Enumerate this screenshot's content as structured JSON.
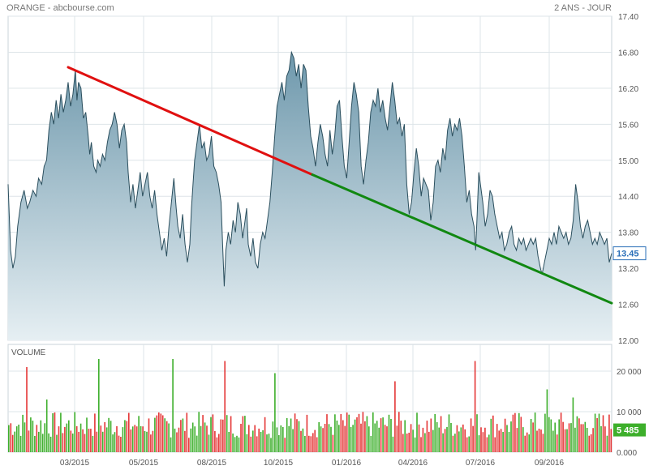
{
  "header": {
    "title": "ORANGE - abcbourse.com",
    "period": "2 ANS - JOUR"
  },
  "chart_data": [
    {
      "type": "area",
      "x_ticks": [
        "03/2015",
        "05/2015",
        "08/2015",
        "10/2015",
        "01/2016",
        "04/2016",
        "07/2016",
        "09/2016"
      ],
      "y_ticks": [
        "17.40",
        "16.80",
        "16.20",
        "15.60",
        "15.00",
        "14.40",
        "13.80",
        "13.20",
        "12.60",
        "12.00"
      ],
      "ylim": [
        12.0,
        17.4
      ],
      "grid": true,
      "last_price": "13.45",
      "series": [
        {
          "points": [
            [
              0,
              14.6
            ],
            [
              3,
              13.5
            ],
            [
              6,
              13.2
            ],
            [
              9,
              13.4
            ],
            [
              12,
              13.9
            ],
            [
              16,
              14.3
            ],
            [
              20,
              14.5
            ],
            [
              24,
              14.2
            ],
            [
              27,
              14.3
            ],
            [
              31,
              14.5
            ],
            [
              35,
              14.4
            ],
            [
              38,
              14.7
            ],
            [
              42,
              14.6
            ],
            [
              45,
              14.9
            ],
            [
              48,
              15.0
            ],
            [
              51,
              15.5
            ],
            [
              54,
              15.8
            ],
            [
              57,
              15.6
            ],
            [
              60,
              16.0
            ],
            [
              63,
              15.7
            ],
            [
              66,
              16.1
            ],
            [
              69,
              15.8
            ],
            [
              72,
              16.0
            ],
            [
              75,
              16.3
            ],
            [
              78,
              15.9
            ],
            [
              81,
              16.1
            ],
            [
              84,
              16.5
            ],
            [
              86,
              16.0
            ],
            [
              88,
              16.3
            ],
            [
              91,
              16.2
            ],
            [
              94,
              15.7
            ],
            [
              97,
              15.8
            ],
            [
              100,
              15.4
            ],
            [
              102,
              15.1
            ],
            [
              104,
              15.3
            ],
            [
              107,
              14.9
            ],
            [
              110,
              14.8
            ],
            [
              112,
              15.0
            ],
            [
              115,
              14.9
            ],
            [
              118,
              15.1
            ],
            [
              121,
              15.0
            ],
            [
              124,
              15.3
            ],
            [
              127,
              15.5
            ],
            [
              130,
              15.6
            ],
            [
              133,
              15.8
            ],
            [
              136,
              15.6
            ],
            [
              139,
              15.2
            ],
            [
              142,
              15.5
            ],
            [
              145,
              15.6
            ],
            [
              148,
              15.3
            ],
            [
              150,
              14.8
            ],
            [
              153,
              14.3
            ],
            [
              156,
              14.6
            ],
            [
              159,
              14.2
            ],
            [
              162,
              14.5
            ],
            [
              165,
              14.8
            ],
            [
              168,
              14.4
            ],
            [
              171,
              14.6
            ],
            [
              174,
              14.8
            ],
            [
              177,
              14.4
            ],
            [
              180,
              14.2
            ],
            [
              183,
              14.5
            ],
            [
              186,
              14.1
            ],
            [
              189,
              13.8
            ],
            [
              192,
              13.5
            ],
            [
              195,
              13.7
            ],
            [
              198,
              13.4
            ],
            [
              201,
              13.9
            ],
            [
              204,
              14.3
            ],
            [
              207,
              14.7
            ],
            [
              210,
              14.2
            ],
            [
              212,
              13.9
            ],
            [
              215,
              13.7
            ],
            [
              218,
              14.1
            ],
            [
              221,
              13.6
            ],
            [
              224,
              13.3
            ],
            [
              227,
              13.6
            ],
            [
              229,
              14.2
            ],
            [
              231,
              14.6
            ],
            [
              233,
              15.0
            ],
            [
              236,
              15.3
            ],
            [
              239,
              15.6
            ],
            [
              242,
              15.2
            ],
            [
              245,
              15.3
            ],
            [
              248,
              15.0
            ],
            [
              251,
              15.1
            ],
            [
              254,
              15.4
            ],
            [
              257,
              14.9
            ],
            [
              260,
              14.8
            ],
            [
              263,
              14.6
            ],
            [
              266,
              14.3
            ],
            [
              268,
              13.6
            ],
            [
              270,
              12.9
            ],
            [
              272,
              13.5
            ],
            [
              275,
              13.8
            ],
            [
              278,
              13.6
            ],
            [
              281,
              14.0
            ],
            [
              284,
              13.8
            ],
            [
              287,
              14.3
            ],
            [
              290,
              14.1
            ],
            [
              293,
              13.7
            ],
            [
              296,
              14.0
            ],
            [
              298,
              14.2
            ],
            [
              300,
              13.6
            ],
            [
              303,
              13.4
            ],
            [
              306,
              13.7
            ],
            [
              309,
              13.3
            ],
            [
              312,
              13.2
            ],
            [
              315,
              13.6
            ],
            [
              318,
              13.8
            ],
            [
              321,
              13.7
            ],
            [
              324,
              14.0
            ],
            [
              327,
              14.3
            ],
            [
              330,
              14.8
            ],
            [
              333,
              15.4
            ],
            [
              336,
              15.9
            ],
            [
              339,
              16.1
            ],
            [
              342,
              16.3
            ],
            [
              345,
              16.0
            ],
            [
              348,
              16.4
            ],
            [
              351,
              16.5
            ],
            [
              354,
              16.8
            ],
            [
              357,
              16.7
            ],
            [
              360,
              16.4
            ],
            [
              363,
              16.6
            ],
            [
              366,
              16.2
            ],
            [
              369,
              16.6
            ],
            [
              372,
              16.5
            ],
            [
              375,
              15.9
            ],
            [
              378,
              15.4
            ],
            [
              381,
              15.2
            ],
            [
              384,
              14.9
            ],
            [
              387,
              15.3
            ],
            [
              390,
              15.6
            ],
            [
              393,
              15.4
            ],
            [
              396,
              15.1
            ],
            [
              399,
              14.9
            ],
            [
              402,
              15.5
            ],
            [
              405,
              15.1
            ],
            [
              408,
              15.4
            ],
            [
              411,
              15.9
            ],
            [
              414,
              16.0
            ],
            [
              417,
              15.4
            ],
            [
              420,
              14.9
            ],
            [
              423,
              14.7
            ],
            [
              426,
              15.3
            ],
            [
              429,
              15.9
            ],
            [
              432,
              16.3
            ],
            [
              435,
              16.1
            ],
            [
              438,
              15.8
            ],
            [
              441,
              14.9
            ],
            [
              444,
              14.6
            ],
            [
              447,
              15.0
            ],
            [
              450,
              15.3
            ],
            [
              453,
              15.8
            ],
            [
              456,
              16.0
            ],
            [
              459,
              15.9
            ],
            [
              462,
              16.2
            ],
            [
              465,
              15.8
            ],
            [
              468,
              16.0
            ],
            [
              471,
              15.7
            ],
            [
              474,
              15.5
            ],
            [
              477,
              15.9
            ],
            [
              480,
              16.3
            ],
            [
              483,
              16.0
            ],
            [
              486,
              15.6
            ],
            [
              489,
              15.7
            ],
            [
              492,
              15.4
            ],
            [
              495,
              15.6
            ],
            [
              498,
              14.6
            ],
            [
              501,
              14.1
            ],
            [
              504,
              14.3
            ],
            [
              507,
              14.8
            ],
            [
              510,
              15.2
            ],
            [
              513,
              14.9
            ],
            [
              516,
              14.4
            ],
            [
              519,
              14.7
            ],
            [
              522,
              14.6
            ],
            [
              525,
              14.5
            ],
            [
              528,
              14.0
            ],
            [
              531,
              14.3
            ],
            [
              534,
              14.9
            ],
            [
              537,
              15.0
            ],
            [
              540,
              14.8
            ],
            [
              543,
              15.2
            ],
            [
              546,
              15.0
            ],
            [
              549,
              15.5
            ],
            [
              552,
              15.7
            ],
            [
              555,
              15.4
            ],
            [
              558,
              15.6
            ],
            [
              561,
              15.5
            ],
            [
              564,
              15.7
            ],
            [
              567,
              15.4
            ],
            [
              570,
              14.9
            ],
            [
              573,
              14.3
            ],
            [
              576,
              14.5
            ],
            [
              579,
              14.1
            ],
            [
              582,
              13.9
            ],
            [
              584,
              13.5
            ],
            [
              586,
              14.1
            ],
            [
              588,
              14.8
            ],
            [
              590,
              14.6
            ],
            [
              593,
              14.3
            ],
            [
              596,
              13.9
            ],
            [
              599,
              14.1
            ],
            [
              602,
              14.5
            ],
            [
              605,
              14.4
            ],
            [
              608,
              14.1
            ],
            [
              611,
              13.9
            ],
            [
              614,
              13.7
            ],
            [
              617,
              13.8
            ],
            [
              620,
              13.5
            ],
            [
              623,
              13.6
            ],
            [
              626,
              13.8
            ],
            [
              629,
              13.9
            ],
            [
              632,
              13.6
            ],
            [
              635,
              13.5
            ],
            [
              638,
              13.7
            ],
            [
              641,
              13.6
            ],
            [
              644,
              13.7
            ],
            [
              647,
              13.5
            ],
            [
              650,
              13.6
            ],
            [
              653,
              13.7
            ],
            [
              656,
              13.6
            ],
            [
              659,
              13.7
            ],
            [
              662,
              13.4
            ],
            [
              665,
              13.2
            ],
            [
              667,
              13.1
            ],
            [
              670,
              13.3
            ],
            [
              673,
              13.5
            ],
            [
              676,
              13.7
            ],
            [
              679,
              13.6
            ],
            [
              682,
              13.8
            ],
            [
              685,
              13.6
            ],
            [
              688,
              13.9
            ],
            [
              691,
              13.8
            ],
            [
              694,
              13.7
            ],
            [
              697,
              13.8
            ],
            [
              700,
              13.6
            ],
            [
              703,
              13.7
            ],
            [
              706,
              14.0
            ],
            [
              709,
              14.6
            ],
            [
              712,
              14.3
            ],
            [
              715,
              13.9
            ],
            [
              718,
              13.7
            ],
            [
              721,
              13.9
            ],
            [
              724,
              14.0
            ],
            [
              727,
              13.8
            ],
            [
              730,
              13.6
            ],
            [
              733,
              13.7
            ],
            [
              736,
              13.6
            ],
            [
              739,
              13.8
            ],
            [
              742,
              13.7
            ],
            [
              745,
              13.6
            ],
            [
              748,
              13.7
            ],
            [
              751,
              13.3
            ],
            [
              754,
              13.45
            ]
          ]
        }
      ],
      "trendlines": [
        {
          "color": "#e01010",
          "from": [
            75,
            16.55
          ],
          "to": [
            380,
            14.76
          ]
        },
        {
          "color": "#118811",
          "from": [
            380,
            14.76
          ],
          "to": [
            754,
            12.62
          ]
        }
      ],
      "colors": {
        "fill_top": "#6e98ac",
        "fill_bottom": "#e6eff3",
        "line": "#2b4f5e",
        "last_price_box": "#2a6fb8"
      }
    },
    {
      "type": "bar",
      "title": "VOLUME",
      "y_ticks": [
        "20 000",
        "10 000",
        "0.000"
      ],
      "ylim": [
        0,
        25000
      ],
      "last_volume": "5 485",
      "colors": {
        "up": "#3daf2b",
        "down": "#e43636",
        "label": "#3daf2b",
        "last_volume_box": "#3daf2b"
      }
    }
  ]
}
